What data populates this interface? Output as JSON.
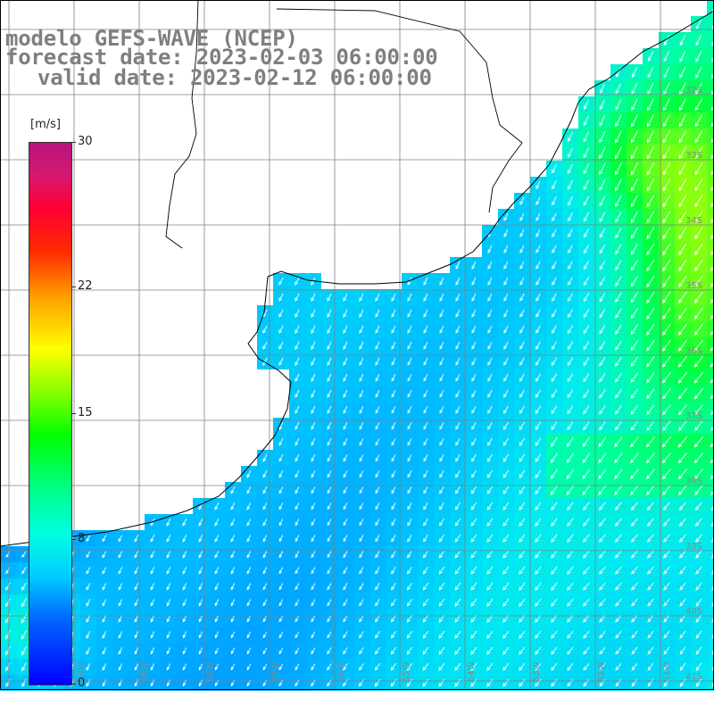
{
  "title": {
    "line1": "modelo GEFS-WAVE (NCEP)",
    "line2": "forecast date: 2023-02-03 06:00:00",
    "line3": "valid date: 2023-02-12 06:00:00"
  },
  "colorbar": {
    "unit": "[m/s]",
    "ticks": [
      {
        "label": "30",
        "value": 30
      },
      {
        "label": "22",
        "value": 22
      },
      {
        "label": "15",
        "value": 15
      },
      {
        "label": "8",
        "value": 8
      },
      {
        "label": "0",
        "value": 0
      }
    ],
    "range": [
      0,
      30
    ]
  },
  "lat_labels": [
    "32S",
    "33S",
    "34S",
    "35S",
    "36S",
    "37S",
    "38S",
    "39S",
    "40S",
    "41S"
  ],
  "lon_labels": [
    "60W",
    "59W",
    "58W",
    "57W",
    "56W",
    "55W",
    "54W",
    "53W",
    "52W",
    "51W"
  ],
  "colors": {
    "land": "#ffffff",
    "coast": "#000000",
    "grid": "#808080",
    "arrow": "#ffffff",
    "title": "#7f7f7f",
    "wind_low": "#0000ff",
    "wind_mid": "#00ccff",
    "wind_high": "#00ff00"
  },
  "wind_direction": "from northeast toward southwest"
}
